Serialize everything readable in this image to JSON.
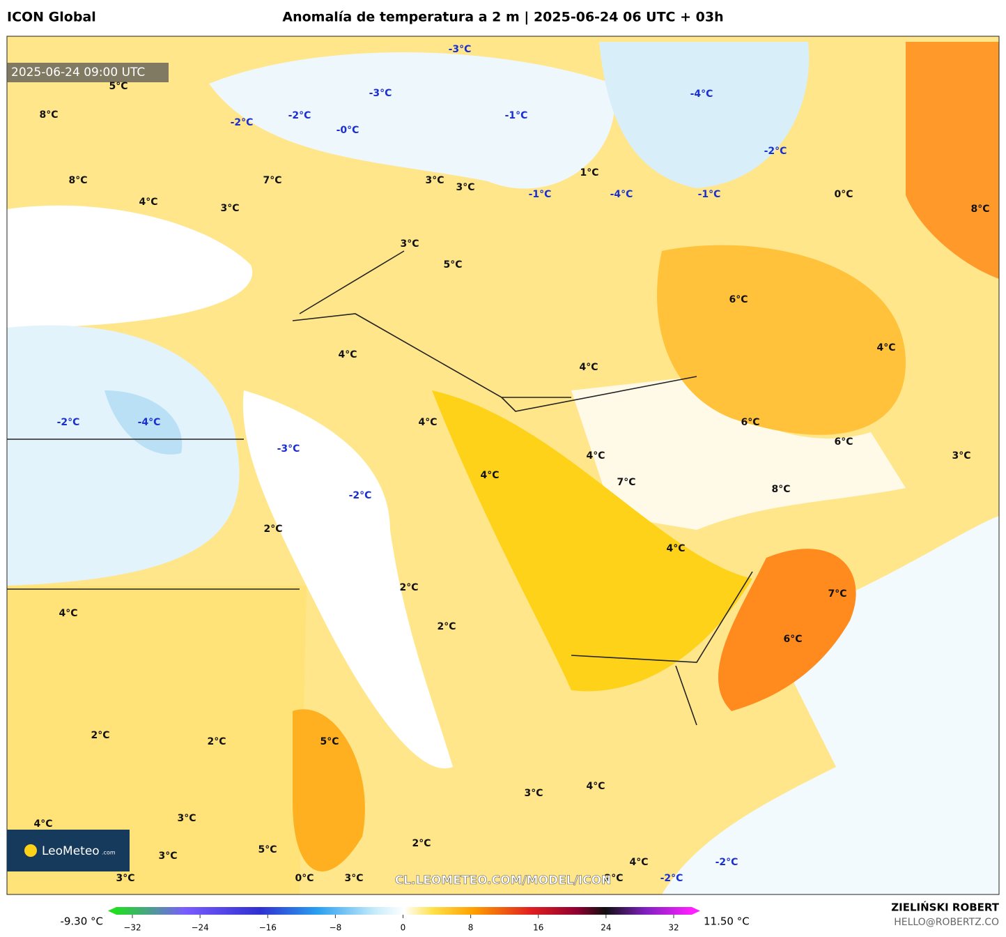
{
  "header": {
    "model": "ICON Global",
    "title": "Anomalía de temperatura a 2 m | 2025-06-24 06 UTC + 03h"
  },
  "valid_time": "2025-06-24 09:00 UTC",
  "map_labels": [
    "5°C",
    "8°C",
    "-2°C",
    "-2°C",
    "-0°C",
    "-3°C",
    "-3°C",
    "-1°C",
    "1°C",
    "-1°C",
    "-4°C",
    "-1°C",
    "-4°C",
    "-2°C",
    "0°C",
    "8°C",
    "8°C",
    "7°C",
    "4°C",
    "3°C",
    "3°C",
    "3°C",
    "3°C",
    "5°C",
    "6°C",
    "4°C",
    "4°C",
    "4°C",
    "-2°C",
    "-4°C",
    "4°C",
    "6°C",
    "6°C",
    "-3°C",
    "4°C",
    "3°C",
    "4°C",
    "7°C",
    "-2°C",
    "8°C",
    "2°C",
    "4°C",
    "2°C",
    "7°C",
    "4°C",
    "2°C",
    "6°C",
    "2°C",
    "2°C",
    "5°C",
    "3°C",
    "4°C",
    "3°C",
    "4°C",
    "3°C",
    "5°C",
    "2°C",
    "4°C",
    "-2°C",
    "3°C",
    "0°C",
    "3°C",
    "2°C",
    "-2°C"
  ],
  "watermark": "CL.LEOMETEO.COM/MODEL/ICON",
  "logo": {
    "name": "LeoMeteo",
    "suffix": ".com"
  },
  "colorbar": {
    "min_label": "-9.30 °C",
    "max_label": "11.50 °C",
    "range": [
      -32,
      32
    ],
    "ticks": [
      {
        "value": -32,
        "label": "−32"
      },
      {
        "value": -24,
        "label": "−24"
      },
      {
        "value": -16,
        "label": "−16"
      },
      {
        "value": -8,
        "label": "−8"
      },
      0,
      8,
      16,
      24,
      32
    ]
  },
  "author": {
    "name": "ZIELIŃSKI ROBERT",
    "email": "HELLO@ROBERTZ.CO"
  }
}
